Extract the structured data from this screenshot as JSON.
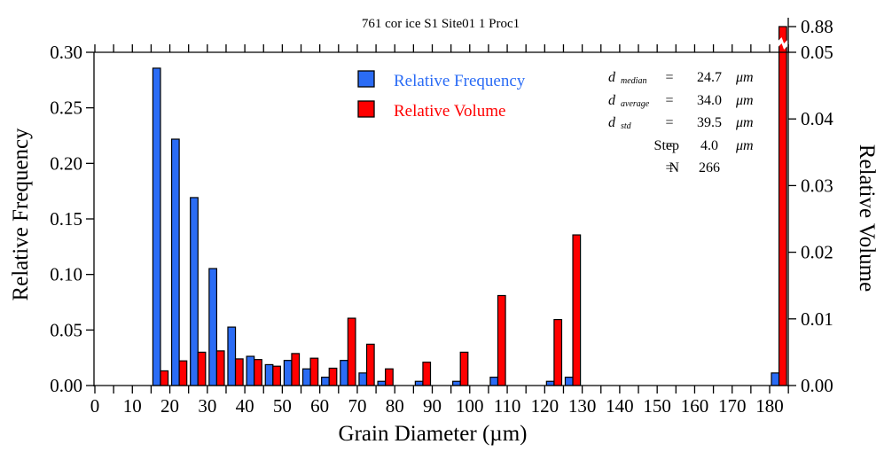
{
  "chart_data": {
    "type": "bar",
    "title": "761 cor ice S1 Site01 1 Proc1",
    "xlabel": "Grain Diameter (µm)",
    "ylabel": "Relative Frequency",
    "y2label": "Relative Volume",
    "xlim": [
      0,
      185
    ],
    "ylim": [
      0,
      0.3
    ],
    "y2lim": [
      0,
      0.05
    ],
    "y2_break_label": "0.88",
    "x_ticks": [
      0,
      10,
      20,
      30,
      40,
      50,
      60,
      70,
      80,
      90,
      100,
      110,
      120,
      130,
      140,
      150,
      160,
      170,
      180
    ],
    "x_minor_step": 5,
    "y_ticks": [
      "0.00",
      "0.05",
      "0.10",
      "0.15",
      "0.20",
      "0.25",
      "0.30"
    ],
    "y2_ticks": [
      "0.00",
      "0.01",
      "0.02",
      "0.03",
      "0.04",
      "0.05"
    ],
    "bin_width": 5,
    "bin_starts": [
      15,
      20,
      25,
      30,
      35,
      40,
      45,
      50,
      55,
      60,
      65,
      70,
      75,
      80,
      85,
      90,
      95,
      100,
      105,
      110,
      115,
      120,
      125,
      130,
      135,
      140,
      145,
      150,
      155,
      160,
      165,
      170,
      175,
      180
    ],
    "series": [
      {
        "name": "Relative Frequency",
        "axis": "left",
        "color": "#2b6cf5",
        "values": [
          0.2857,
          0.2218,
          0.1692,
          0.1053,
          0.0526,
          0.0263,
          0.0188,
          0.0226,
          0.015,
          0.0075,
          0.0226,
          0.0113,
          0.0038,
          0,
          0.0038,
          0,
          0.0038,
          0,
          0.0075,
          0,
          0,
          0.0038,
          0.0075,
          0,
          0,
          0,
          0,
          0,
          0,
          0,
          0,
          0,
          0,
          0.0113
        ]
      },
      {
        "name": "Relative Volume",
        "axis": "right",
        "color": "#ff0000",
        "values": [
          0.0022,
          0.0037,
          0.005,
          0.0052,
          0.004,
          0.0039,
          0.0029,
          0.0048,
          0.0041,
          0.0026,
          0.0101,
          0.0062,
          0.0025,
          0,
          0.0035,
          0,
          0.005,
          0,
          0.0135,
          0,
          0,
          0.0099,
          0.0226,
          0,
          0,
          0,
          0,
          0,
          0,
          0,
          0,
          0,
          0,
          0.88
        ]
      }
    ],
    "legend": {
      "position": "top-center",
      "items": [
        {
          "label": "Relative Frequency",
          "color": "#2b6cf5"
        },
        {
          "label": "Relative Volume",
          "color": "#ff0000"
        }
      ]
    },
    "stats": [
      {
        "symbol": "d",
        "sub": "median",
        "eq": "=",
        "value": "24.7",
        "unit": "μm"
      },
      {
        "symbol": "d",
        "sub": "average",
        "eq": "=",
        "value": "34.0",
        "unit": "μm"
      },
      {
        "symbol": "d",
        "sub": "std",
        "eq": "=",
        "value": "39.5",
        "unit": "μm"
      },
      {
        "symbol": "Step",
        "sub": "",
        "eq": "=",
        "value": "4.0",
        "unit": "μm"
      },
      {
        "symbol": "N",
        "sub": "",
        "eq": "=",
        "value": "266",
        "unit": ""
      }
    ]
  }
}
